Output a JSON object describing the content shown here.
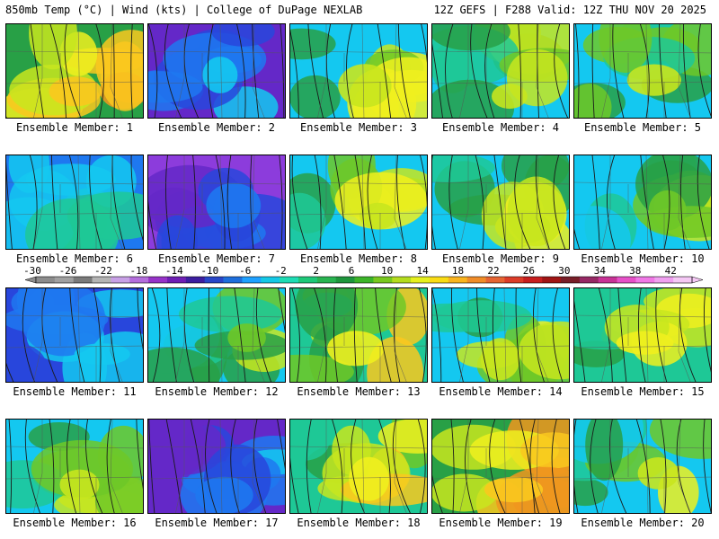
{
  "header": {
    "left": "850mb Temp (°C) | Wind (kts) | College of DuPage NEXLAB",
    "right": "12Z GEFS | F288 Valid: 12Z THU NOV 20 2025"
  },
  "panels": [
    {
      "label": "Ensemble Member: 1",
      "tone": 12
    },
    {
      "label": "Ensemble Member: 2",
      "tone": -6
    },
    {
      "label": "Ensemble Member: 3",
      "tone": 6
    },
    {
      "label": "Ensemble Member: 4",
      "tone": 6
    },
    {
      "label": "Ensemble Member: 5",
      "tone": 6
    },
    {
      "label": "Ensemble Member: 6",
      "tone": 0
    },
    {
      "label": "Ensemble Member: 7",
      "tone": -10
    },
    {
      "label": "Ensemble Member: 8",
      "tone": 6
    },
    {
      "label": "Ensemble Member: 9",
      "tone": 6
    },
    {
      "label": "Ensemble Member: 10",
      "tone": 4
    },
    {
      "label": "Ensemble Member: 11",
      "tone": -4
    },
    {
      "label": "Ensemble Member: 12",
      "tone": 4
    },
    {
      "label": "Ensemble Member: 13",
      "tone": 8
    },
    {
      "label": "Ensemble Member: 14",
      "tone": 6
    },
    {
      "label": "Ensemble Member: 15",
      "tone": 8
    },
    {
      "label": "Ensemble Member: 16",
      "tone": 6
    },
    {
      "label": "Ensemble Member: 17",
      "tone": -8
    },
    {
      "label": "Ensemble Member: 18",
      "tone": 8
    },
    {
      "label": "Ensemble Member: 19",
      "tone": 12
    },
    {
      "label": "Ensemble Member: 20",
      "tone": 6
    }
  ],
  "colorbar": {
    "ticks": [
      "-30",
      "-26",
      "-22",
      "-18",
      "-14",
      "-10",
      "-6",
      "-2",
      "2",
      "6",
      "10",
      "14",
      "18",
      "22",
      "26",
      "30",
      "34",
      "38",
      "42"
    ],
    "colors": [
      "#8c8c8c",
      "#a0a0a0",
      "#7a7a7a",
      "#b4b4b4",
      "#c8a0e6",
      "#b46edc",
      "#9632c8",
      "#6e1eb4",
      "#3c1ea0",
      "#2846c8",
      "#1e6edc",
      "#1ea0ff",
      "#14c8e6",
      "#1edcb4",
      "#1ec878",
      "#28b450",
      "#1e963c",
      "#3cb428",
      "#78c81e",
      "#b4dc1e",
      "#e6f01e",
      "#fadc14",
      "#fab41e",
      "#f08c28",
      "#e66432",
      "#dc3c28",
      "#c81e1e",
      "#a01414",
      "#781e28",
      "#962864",
      "#c83296",
      "#e650c8",
      "#f078e6",
      "#f0a0f0",
      "#f5c8f5"
    ]
  }
}
